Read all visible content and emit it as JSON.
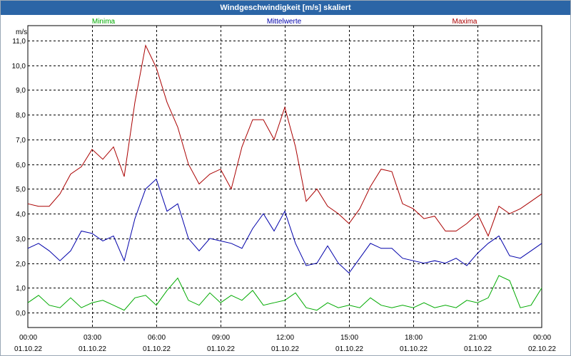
{
  "window": {
    "title": "Windgeschwindigkeit [m/s] skaliert"
  },
  "chart_data": {
    "type": "line",
    "title": "Windgeschwindigkeit [m/s] skaliert",
    "ylabel": "m/s",
    "xlabel": "",
    "ylim": [
      -0.6,
      11.6
    ],
    "xlim": [
      0,
      24
    ],
    "grid": true,
    "legend_position": "top",
    "y_ticks": [
      "0,0",
      "1,0",
      "2,0",
      "3,0",
      "4,0",
      "5,0",
      "6,0",
      "7,0",
      "8,0",
      "9,0",
      "10,0",
      "11,0"
    ],
    "y_tick_values": [
      0,
      1,
      2,
      3,
      4,
      5,
      6,
      7,
      8,
      9,
      10,
      11
    ],
    "x_ticks": [
      {
        "time": "00:00",
        "date": "01.10.22",
        "hour": 0
      },
      {
        "time": "03:00",
        "date": "01.10.22",
        "hour": 3
      },
      {
        "time": "06:00",
        "date": "01.10.22",
        "hour": 6
      },
      {
        "time": "09:00",
        "date": "01.10.22",
        "hour": 9
      },
      {
        "time": "12:00",
        "date": "01.10.22",
        "hour": 12
      },
      {
        "time": "15:00",
        "date": "01.10.22",
        "hour": 15
      },
      {
        "time": "18:00",
        "date": "01.10.22",
        "hour": 18
      },
      {
        "time": "21:00",
        "date": "01.10.22",
        "hour": 21
      },
      {
        "time": "00:00",
        "date": "02.10.22",
        "hour": 24
      }
    ],
    "series": [
      {
        "name": "Minima",
        "color": "#00aa00",
        "x": [
          0,
          0.5,
          1,
          1.5,
          2,
          2.5,
          3,
          3.5,
          4,
          4.5,
          5,
          5.5,
          6,
          6.5,
          7,
          7.5,
          8,
          8.5,
          9,
          9.5,
          10,
          10.5,
          11,
          11.5,
          12,
          12.5,
          13,
          13.5,
          14,
          14.5,
          15,
          15.5,
          16,
          16.5,
          17,
          17.5,
          18,
          18.5,
          19,
          19.5,
          20,
          20.5,
          21,
          21.5,
          22,
          22.5,
          23,
          23.5,
          24
        ],
        "values": [
          0.4,
          0.7,
          0.3,
          0.2,
          0.6,
          0.2,
          0.4,
          0.5,
          0.3,
          0.1,
          0.6,
          0.7,
          0.3,
          0.9,
          1.4,
          0.5,
          0.3,
          0.8,
          0.4,
          0.7,
          0.5,
          0.9,
          0.3,
          0.4,
          0.5,
          0.8,
          0.2,
          0.1,
          0.4,
          0.2,
          0.3,
          0.2,
          0.6,
          0.3,
          0.2,
          0.3,
          0.2,
          0.4,
          0.2,
          0.3,
          0.2,
          0.5,
          0.4,
          0.6,
          1.5,
          1.3,
          0.2,
          0.3,
          1.0
        ]
      },
      {
        "name": "Mittelwerte",
        "color": "#0000aa",
        "x": [
          0,
          0.5,
          1,
          1.5,
          2,
          2.5,
          3,
          3.5,
          4,
          4.5,
          5,
          5.5,
          6,
          6.5,
          7,
          7.5,
          8,
          8.5,
          9,
          9.5,
          10,
          10.5,
          11,
          11.5,
          12,
          12.5,
          13,
          13.5,
          14,
          14.5,
          15,
          15.5,
          16,
          16.5,
          17,
          17.5,
          18,
          18.5,
          19,
          19.5,
          20,
          20.5,
          21,
          21.5,
          22,
          22.5,
          23,
          23.5,
          24
        ],
        "values": [
          2.6,
          2.8,
          2.5,
          2.1,
          2.5,
          3.3,
          3.2,
          2.9,
          3.1,
          2.1,
          3.8,
          5.0,
          5.4,
          4.1,
          4.4,
          3.0,
          2.5,
          3.0,
          2.9,
          2.8,
          2.6,
          3.4,
          4.0,
          3.3,
          4.1,
          2.8,
          1.9,
          2.0,
          2.7,
          2.0,
          1.6,
          2.2,
          2.8,
          2.6,
          2.6,
          2.2,
          2.1,
          2.0,
          2.1,
          2.0,
          2.2,
          1.9,
          2.4,
          2.8,
          3.1,
          2.3,
          2.2,
          2.5,
          2.8
        ]
      },
      {
        "name": "Maxima",
        "color": "#aa0000",
        "x": [
          0,
          0.5,
          1,
          1.5,
          2,
          2.5,
          3,
          3.5,
          4,
          4.5,
          5,
          5.5,
          6,
          6.5,
          7,
          7.5,
          8,
          8.5,
          9,
          9.5,
          10,
          10.5,
          11,
          11.5,
          12,
          12.5,
          13,
          13.5,
          14,
          14.5,
          15,
          15.5,
          16,
          16.5,
          17,
          17.5,
          18,
          18.5,
          19,
          19.5,
          20,
          20.5,
          21,
          21.5,
          22,
          22.5,
          23,
          23.5,
          24
        ],
        "values": [
          4.4,
          4.3,
          4.3,
          4.8,
          5.6,
          5.9,
          6.6,
          6.2,
          6.7,
          5.5,
          8.5,
          10.8,
          9.9,
          8.5,
          7.5,
          6.0,
          5.2,
          5.6,
          5.8,
          5.0,
          6.7,
          7.8,
          7.8,
          7.0,
          8.3,
          6.7,
          4.5,
          5.0,
          4.3,
          4.0,
          3.6,
          4.2,
          5.1,
          5.8,
          5.7,
          4.4,
          4.2,
          3.8,
          3.9,
          3.3,
          3.3,
          3.6,
          4.0,
          3.1,
          4.3,
          4.0,
          4.2,
          4.5,
          4.8
        ]
      }
    ]
  }
}
